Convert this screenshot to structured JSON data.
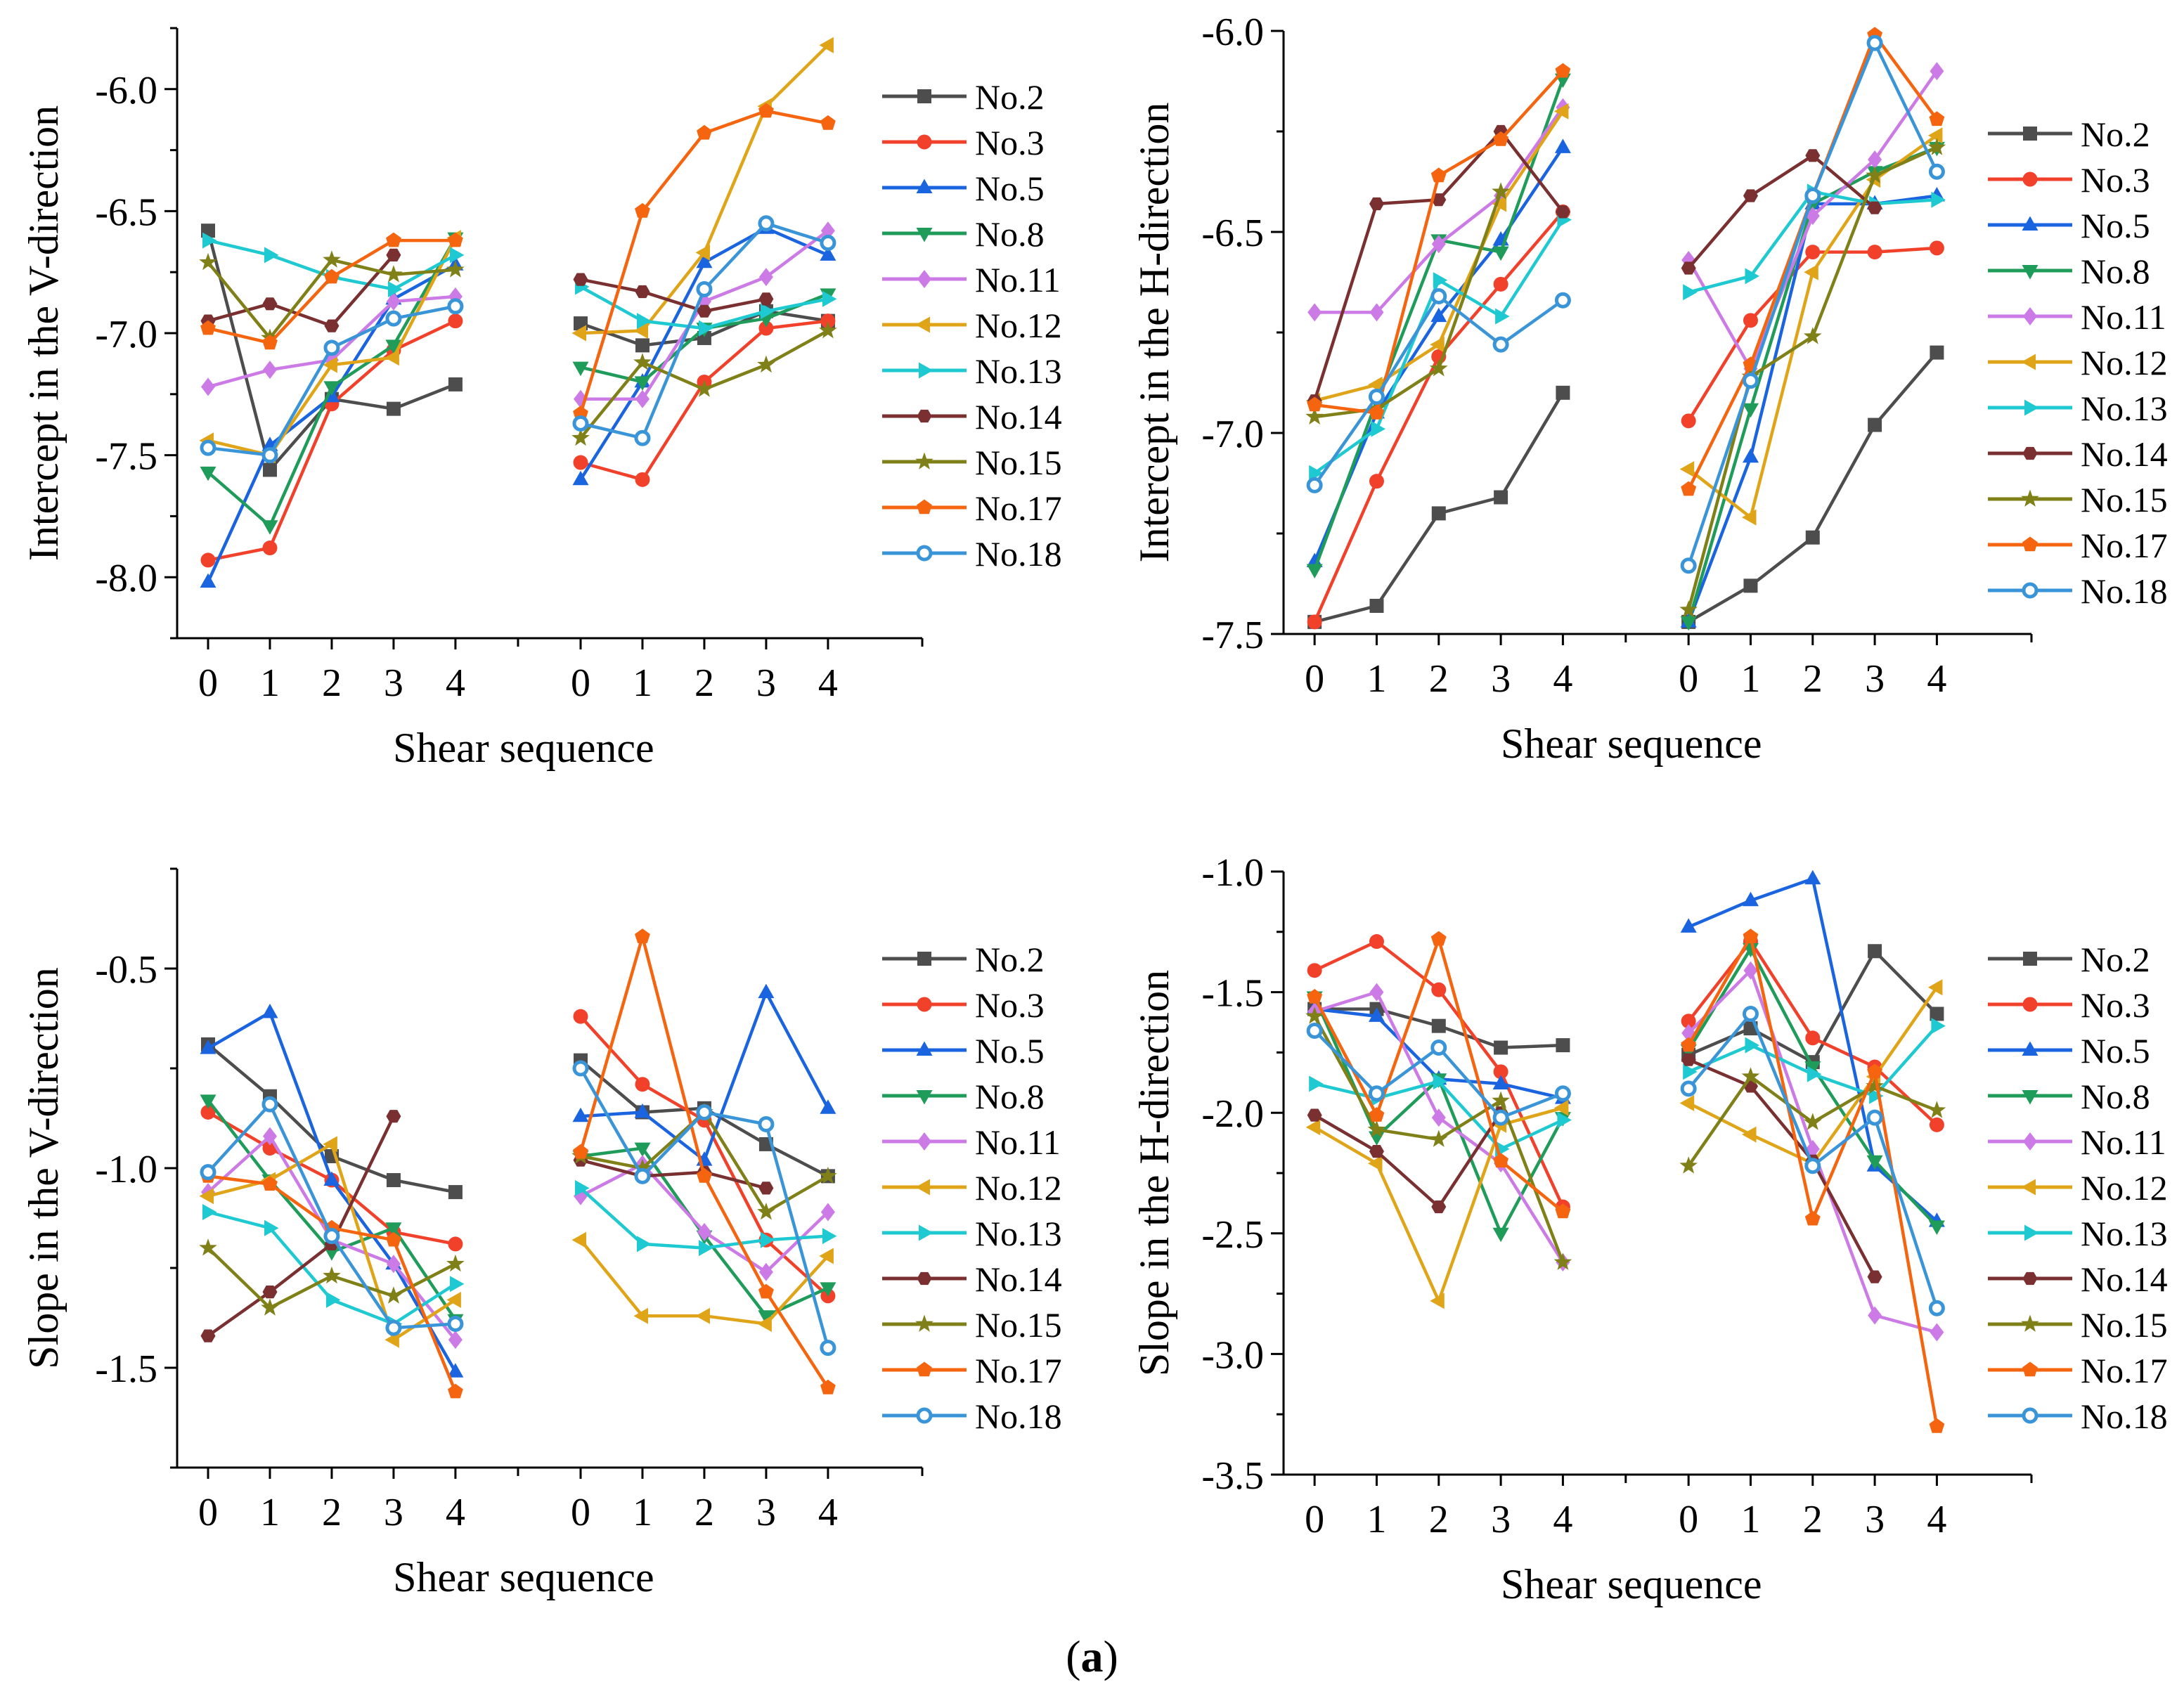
{
  "caption": {
    "open": "(",
    "label": "a",
    "close": ")"
  },
  "legend_series": [
    "No.2",
    "No.3",
    "No.5",
    "No.8",
    "No.11",
    "No.12",
    "No.13",
    "No.14",
    "No.15",
    "No.17",
    "No.18"
  ],
  "series_styles": [
    {
      "name": "No.2",
      "color": "#4d4d4d",
      "marker": "square"
    },
    {
      "name": "No.3",
      "color": "#f2412b",
      "marker": "circle"
    },
    {
      "name": "No.5",
      "color": "#1a64e0",
      "marker": "triangle"
    },
    {
      "name": "No.8",
      "color": "#1f9b5a",
      "marker": "triangle-down"
    },
    {
      "name": "No.11",
      "color": "#cc7ae6",
      "marker": "diamond"
    },
    {
      "name": "No.12",
      "color": "#e0a418",
      "marker": "triangle-left"
    },
    {
      "name": "No.13",
      "color": "#1fc9d1",
      "marker": "triangle-right"
    },
    {
      "name": "No.14",
      "color": "#7a3030",
      "marker": "hexagon"
    },
    {
      "name": "No.15",
      "color": "#808018",
      "marker": "star"
    },
    {
      "name": "No.17",
      "color": "#f5650f",
      "marker": "pentagon"
    },
    {
      "name": "No.18",
      "color": "#3a95d8",
      "marker": "circle-open"
    }
  ],
  "chart_data": [
    {
      "id": "v-intercept",
      "type": "line",
      "ylabel": "Intercept in the V-direction",
      "xlabel": "Shear sequence",
      "ylim": [
        -8.25,
        -5.75
      ],
      "yticks": [
        "-6.0",
        "-6.5",
        "-7.0",
        "-7.5",
        "-8.0"
      ],
      "ytick_values": [
        -6.0,
        -6.5,
        -7.0,
        -7.5,
        -8.0
      ],
      "x_groups": [
        [
          "0",
          "1",
          "2",
          "3",
          "4"
        ],
        [
          "0",
          "1",
          "2",
          "3",
          "4"
        ]
      ],
      "series": [
        {
          "name": "No.2",
          "values": [
            [
              -6.58,
              -7.56,
              -7.27,
              -7.31,
              -7.21
            ],
            [
              -6.96,
              -7.05,
              -7.02,
              -6.91,
              -6.95
            ]
          ]
        },
        {
          "name": "No.3",
          "values": [
            [
              -7.93,
              -7.88,
              -7.29,
              -7.07,
              -6.95
            ],
            [
              -7.53,
              -7.6,
              -7.2,
              -6.98,
              -6.95
            ]
          ]
        },
        {
          "name": "No.5",
          "values": [
            [
              -8.02,
              -7.46,
              -7.26,
              -6.86,
              -6.72
            ],
            [
              -7.6,
              -7.2,
              -6.71,
              -6.57,
              -6.68
            ]
          ]
        },
        {
          "name": "No.8",
          "values": [
            [
              -7.57,
              -7.79,
              -7.22,
              -7.05,
              -6.61
            ],
            [
              -7.14,
              -7.2,
              -6.98,
              -6.94,
              -6.84
            ]
          ]
        },
        {
          "name": "No.11",
          "values": [
            [
              -7.22,
              -7.15,
              -7.11,
              -6.87,
              -6.85
            ],
            [
              -7.27,
              -7.27,
              -6.87,
              -6.77,
              -6.58
            ]
          ]
        },
        {
          "name": "No.12",
          "values": [
            [
              -7.44,
              -7.5,
              -7.13,
              -7.1,
              -6.61
            ],
            [
              -7.0,
              -6.99,
              -6.67,
              -6.07,
              -5.82
            ]
          ]
        },
        {
          "name": "No.13",
          "values": [
            [
              -6.62,
              -6.68,
              -6.77,
              -6.82,
              -6.68
            ],
            [
              -6.81,
              -6.95,
              -6.98,
              -6.91,
              -6.86
            ]
          ]
        },
        {
          "name": "No.14",
          "values": [
            [
              -6.95,
              -6.88,
              -6.97,
              -6.68,
              null
            ],
            [
              -6.78,
              -6.83,
              -6.91,
              -6.86,
              null
            ]
          ]
        },
        {
          "name": "No.15",
          "values": [
            [
              -6.71,
              -7.02,
              -6.7,
              -6.76,
              -6.74
            ],
            [
              -7.43,
              -7.12,
              -7.23,
              -7.13,
              -6.99
            ]
          ]
        },
        {
          "name": "No.17",
          "values": [
            [
              -6.98,
              -7.04,
              -6.77,
              -6.62,
              -6.62
            ],
            [
              -7.33,
              -6.5,
              -6.18,
              -6.09,
              -6.14
            ]
          ]
        },
        {
          "name": "No.18",
          "values": [
            [
              -7.47,
              -7.5,
              -7.06,
              -6.94,
              -6.89
            ],
            [
              -7.37,
              -7.43,
              -6.82,
              -6.55,
              -6.63
            ]
          ]
        }
      ]
    },
    {
      "id": "h-intercept",
      "type": "line",
      "ylabel": "Intercept in the H-direction",
      "xlabel": "Shear sequence",
      "ylim": [
        -7.5,
        -6.0
      ],
      "yticks": [
        "-6.0",
        "-6.5",
        "-7.0",
        "-7.5"
      ],
      "ytick_values": [
        -6.0,
        -6.5,
        -7.0,
        -7.5
      ],
      "x_groups": [
        [
          "0",
          "1",
          "2",
          "3",
          "4"
        ],
        [
          "0",
          "1",
          "2",
          "3",
          "4"
        ]
      ],
      "series": [
        {
          "name": "No.2",
          "values": [
            [
              -7.47,
              -7.43,
              -7.2,
              -7.16,
              -6.9
            ],
            [
              -7.47,
              -7.38,
              -7.26,
              -6.98,
              -6.8
            ]
          ]
        },
        {
          "name": "No.3",
          "values": [
            [
              -7.47,
              -7.12,
              -6.81,
              -6.63,
              -6.45
            ],
            [
              -6.97,
              -6.72,
              -6.55,
              -6.55,
              -6.54
            ]
          ]
        },
        {
          "name": "No.5",
          "values": [
            [
              -7.32,
              -6.95,
              -6.71,
              -6.52,
              -6.29
            ],
            [
              -7.47,
              -7.06,
              -6.43,
              -6.43,
              -6.41
            ]
          ]
        },
        {
          "name": "No.8",
          "values": [
            [
              -7.34,
              -6.92,
              -6.52,
              -6.55,
              -6.12
            ],
            [
              -7.47,
              -6.94,
              -6.43,
              -6.35,
              -6.29
            ]
          ]
        },
        {
          "name": "No.11",
          "values": [
            [
              -6.7,
              -6.7,
              -6.53,
              -6.41,
              -6.19
            ],
            [
              -6.57,
              -6.84,
              -6.46,
              -6.32,
              -6.1
            ]
          ]
        },
        {
          "name": "No.12",
          "values": [
            [
              -6.92,
              -6.88,
              -6.78,
              -6.43,
              -6.2
            ],
            [
              -7.09,
              -7.21,
              -6.6,
              -6.37,
              -6.26
            ]
          ]
        },
        {
          "name": "No.13",
          "values": [
            [
              -7.1,
              -6.99,
              -6.62,
              -6.71,
              -6.47
            ],
            [
              -6.65,
              -6.61,
              -6.4,
              -6.43,
              -6.42
            ]
          ]
        },
        {
          "name": "No.14",
          "values": [
            [
              -6.92,
              -6.43,
              -6.42,
              -6.25,
              -6.45
            ],
            [
              -6.59,
              -6.41,
              -6.31,
              -6.44,
              null
            ]
          ]
        },
        {
          "name": "No.15",
          "values": [
            [
              -6.96,
              -6.94,
              -6.84,
              -6.4,
              null
            ],
            [
              -7.44,
              -6.86,
              -6.76,
              -6.36,
              -6.29
            ]
          ]
        },
        {
          "name": "No.17",
          "values": [
            [
              -6.93,
              -6.95,
              -6.36,
              -6.27,
              -6.1
            ],
            [
              -7.14,
              -6.83,
              -6.41,
              -6.01,
              -6.22
            ]
          ]
        },
        {
          "name": "No.18",
          "values": [
            [
              -7.13,
              -6.91,
              -6.66,
              -6.78,
              -6.67
            ],
            [
              -7.33,
              -6.87,
              -6.41,
              -6.03,
              -6.35
            ]
          ]
        }
      ]
    },
    {
      "id": "v-slope",
      "type": "line",
      "ylabel": "Slope in the V-direction",
      "xlabel": "Shear sequence",
      "ylim": [
        -1.75,
        -0.25
      ],
      "yticks": [
        "-0.5",
        "-1.0",
        "-1.5"
      ],
      "ytick_values": [
        -0.5,
        -1.0,
        -1.5
      ],
      "x_groups": [
        [
          "0",
          "1",
          "2",
          "3",
          "4"
        ],
        [
          "0",
          "1",
          "2",
          "3",
          "4"
        ]
      ],
      "series": [
        {
          "name": "No.2",
          "values": [
            [
              -0.69,
              -0.82,
              -0.97,
              -1.03,
              -1.06
            ],
            [
              -0.73,
              -0.86,
              -0.85,
              -0.94,
              -1.02
            ]
          ]
        },
        {
          "name": "No.3",
          "values": [
            [
              -0.86,
              -0.95,
              -1.03,
              -1.16,
              -1.19
            ],
            [
              -0.62,
              -0.79,
              -0.88,
              -1.18,
              -1.32
            ]
          ]
        },
        {
          "name": "No.5",
          "values": [
            [
              -0.7,
              -0.61,
              -1.03,
              -1.24,
              -1.51
            ],
            [
              -0.87,
              -0.86,
              -0.98,
              -0.56,
              -0.85
            ]
          ]
        },
        {
          "name": "No.8",
          "values": [
            [
              -0.83,
              -1.03,
              -1.21,
              -1.15,
              -1.38
            ],
            [
              -0.97,
              -0.95,
              -1.17,
              -1.37,
              -1.3
            ]
          ]
        },
        {
          "name": "No.11",
          "values": [
            [
              -1.06,
              -0.92,
              -1.18,
              -1.24,
              -1.43
            ],
            [
              -1.07,
              -0.99,
              -1.16,
              -1.26,
              -1.11
            ]
          ]
        },
        {
          "name": "No.12",
          "values": [
            [
              -1.07,
              -1.03,
              -0.94,
              -1.43,
              -1.33
            ],
            [
              -1.18,
              -1.37,
              -1.37,
              -1.39,
              -1.22
            ]
          ]
        },
        {
          "name": "No.13",
          "values": [
            [
              -1.11,
              -1.15,
              -1.33,
              -1.39,
              -1.29
            ],
            [
              -1.05,
              -1.19,
              -1.2,
              -1.18,
              -1.17
            ]
          ]
        },
        {
          "name": "No.14",
          "values": [
            [
              -1.42,
              -1.31,
              -1.19,
              -0.87,
              null
            ],
            [
              -0.98,
              -1.02,
              -1.01,
              -1.05,
              null
            ]
          ]
        },
        {
          "name": "No.15",
          "values": [
            [
              -1.2,
              -1.35,
              -1.27,
              -1.32,
              -1.24
            ],
            [
              -0.97,
              -1.0,
              -0.86,
              -1.11,
              -1.02
            ]
          ]
        },
        {
          "name": "No.17",
          "values": [
            [
              -1.02,
              -1.04,
              -1.15,
              -1.18,
              -1.56
            ],
            [
              -0.96,
              -0.42,
              -1.02,
              -1.31,
              -1.55
            ]
          ]
        },
        {
          "name": "No.18",
          "values": [
            [
              -1.01,
              -0.84,
              -1.17,
              -1.4,
              -1.39
            ],
            [
              -0.75,
              -1.02,
              -0.86,
              -0.89,
              -1.45
            ]
          ]
        }
      ]
    },
    {
      "id": "h-slope",
      "type": "line",
      "ylabel": "Slope in the H-direction",
      "xlabel": "Shear sequence",
      "ylim": [
        -3.5,
        -1.0
      ],
      "yticks": [
        "-1.0",
        "-1.5",
        "-2.0",
        "-2.5",
        "-3.0",
        "-3.5"
      ],
      "ytick_values": [
        -1.0,
        -1.5,
        -2.0,
        -2.5,
        -3.0,
        -3.5
      ],
      "x_groups": [
        [
          "0",
          "1",
          "2",
          "3",
          "4"
        ],
        [
          "0",
          "1",
          "2",
          "3",
          "4"
        ]
      ],
      "series": [
        {
          "name": "No.2",
          "values": [
            [
              -1.57,
              -1.57,
              -1.64,
              -1.73,
              -1.72
            ],
            [
              -1.76,
              -1.65,
              -1.79,
              -1.33,
              -1.59
            ]
          ]
        },
        {
          "name": "No.3",
          "values": [
            [
              -1.41,
              -1.29,
              -1.49,
              -1.83,
              -2.39
            ],
            [
              -1.62,
              -1.29,
              -1.69,
              -1.81,
              -2.05
            ]
          ]
        },
        {
          "name": "No.5",
          "values": [
            [
              -1.57,
              -1.6,
              -1.86,
              -1.88,
              -1.94
            ],
            [
              -1.23,
              -1.12,
              -1.03,
              -2.22,
              -2.45
            ]
          ]
        },
        {
          "name": "No.8",
          "values": [
            [
              -1.52,
              -2.1,
              -1.86,
              -2.5,
              -2.02
            ],
            [
              -1.74,
              -1.32,
              -1.81,
              -2.2,
              -2.47
            ]
          ]
        },
        {
          "name": "No.11",
          "values": [
            [
              -1.58,
              -1.5,
              -2.02,
              -2.21,
              -2.62
            ],
            [
              -1.67,
              -1.41,
              -2.15,
              -2.84,
              -2.91
            ]
          ]
        },
        {
          "name": "No.12",
          "values": [
            [
              -2.06,
              -2.21,
              -2.78,
              -2.05,
              -1.98
            ],
            [
              -1.96,
              -2.09,
              -2.21,
              -1.85,
              -1.48
            ]
          ]
        },
        {
          "name": "No.13",
          "values": [
            [
              -1.88,
              -1.94,
              -1.87,
              -2.15,
              -2.03
            ],
            [
              -1.83,
              -1.72,
              -1.84,
              -1.93,
              -1.64
            ]
          ]
        },
        {
          "name": "No.14",
          "values": [
            [
              -2.01,
              -2.16,
              -2.39,
              -2.0,
              null
            ],
            [
              -1.78,
              -1.89,
              -2.2,
              -2.68,
              null
            ]
          ]
        },
        {
          "name": "No.15",
          "values": [
            [
              -1.6,
              -2.07,
              -2.11,
              -1.95,
              -2.62
            ],
            [
              -2.22,
              -1.85,
              -2.04,
              -1.89,
              -1.99
            ]
          ]
        },
        {
          "name": "No.17",
          "values": [
            [
              -1.52,
              -2.01,
              -1.28,
              -2.2,
              -2.41
            ],
            [
              -1.72,
              -1.27,
              -2.44,
              -1.83,
              -3.3
            ]
          ]
        },
        {
          "name": "No.18",
          "values": [
            [
              -1.66,
              -1.92,
              -1.73,
              -2.02,
              -1.92
            ],
            [
              -1.9,
              -1.59,
              -2.22,
              -2.02,
              -2.81
            ]
          ]
        }
      ]
    }
  ]
}
